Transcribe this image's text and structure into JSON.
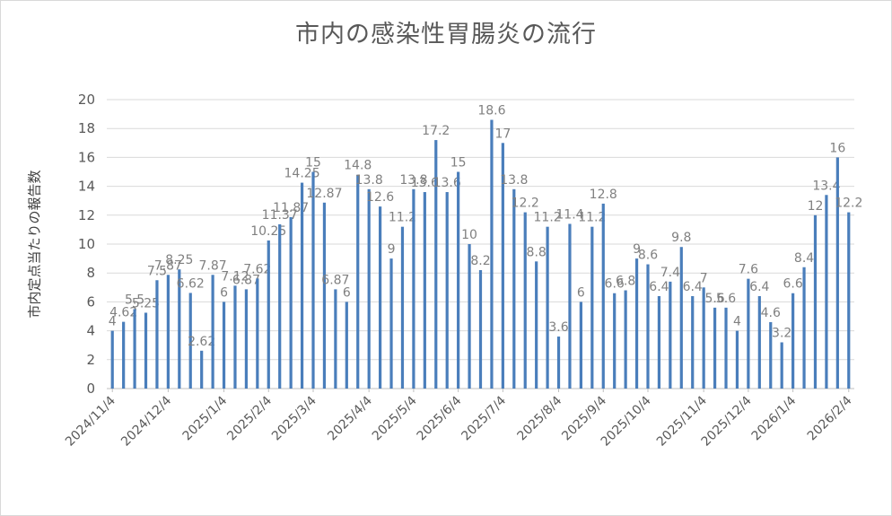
{
  "chart_data": {
    "type": "bar",
    "title": "市内の感染性胃腸炎の流行",
    "ylabel": "市内定点当たりの報告数",
    "xlabel": "",
    "ylim": [
      0,
      20
    ],
    "yticks": [
      0,
      2,
      4,
      6,
      8,
      10,
      12,
      14,
      16,
      18,
      20
    ],
    "grid": true,
    "legend": "none",
    "color": "#4a7ebb",
    "x_tick_labels": [
      "2024/11/4",
      "2024/12/4",
      "2025/1/4",
      "2025/2/4",
      "2025/3/4",
      "2025/4/4",
      "2025/5/4",
      "2025/6/4",
      "2025/7/4",
      "2025/8/4",
      "2025/9/4",
      "2025/10/4",
      "2025/11/4",
      "2025/12/4",
      "2026/1/4",
      "2026/2/4"
    ],
    "x_tick_indices": [
      0,
      5,
      10,
      14,
      18,
      23,
      27,
      31,
      35,
      40,
      44,
      48,
      53,
      57,
      61,
      66
    ],
    "values": [
      4,
      4.62,
      5.5,
      5.25,
      7.5,
      7.87,
      8.25,
      6.62,
      2.62,
      7.87,
      6,
      7.12,
      6.87,
      7.62,
      10.25,
      11.37,
      11.87,
      14.25,
      15,
      12.87,
      6.87,
      6,
      14.8,
      13.8,
      12.6,
      9,
      11.2,
      13.8,
      13.6,
      17.2,
      13.6,
      15,
      10,
      8.2,
      18.6,
      17,
      13.8,
      12.2,
      8.8,
      11.2,
      3.6,
      11.4,
      6,
      11.2,
      12.8,
      6.6,
      6.8,
      9,
      8.6,
      6.4,
      7.4,
      9.8,
      6.4,
      7,
      5.6,
      5.6,
      4,
      7.6,
      6.4,
      4.6,
      3.2,
      6.6,
      8.4,
      12,
      13.4,
      16,
      12.2
    ]
  }
}
